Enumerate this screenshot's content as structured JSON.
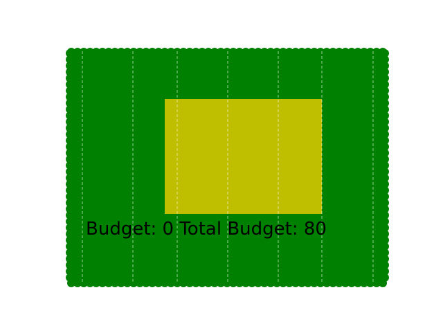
{
  "game": {
    "status_text": "Budget: 0 Total Budget: 80",
    "grid": {
      "columns": 7
    },
    "colors": {
      "field": "#008000",
      "target_region": "#bfbf00",
      "grid_lines": "#ffffff",
      "background": "#ffffff",
      "text": "#000000"
    }
  }
}
